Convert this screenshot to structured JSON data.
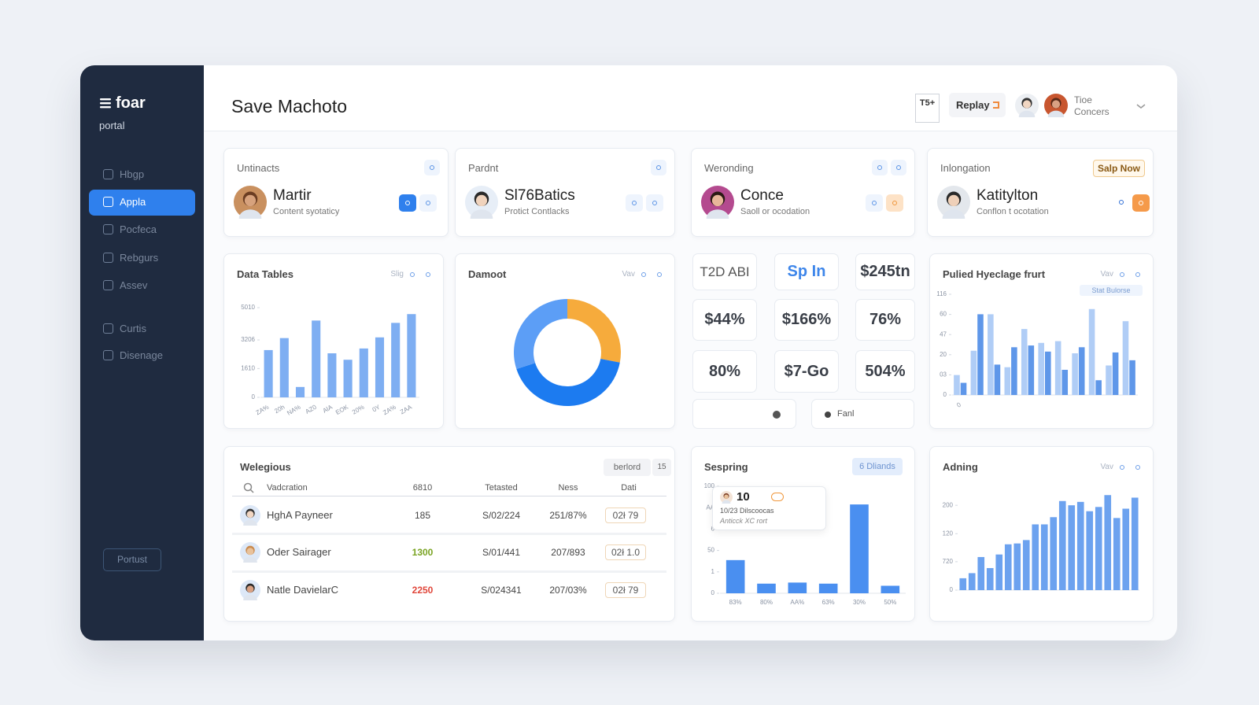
{
  "sidebar": {
    "brand": "foar",
    "subtitle": "portal",
    "nav": [
      "Hbgp",
      "Appla",
      "Pocfeca",
      "Rebgurs",
      "Assev",
      "Curtis",
      "Disenage"
    ],
    "active": 1,
    "footer_button": "Portust"
  },
  "header": {
    "title": "Save Machoto",
    "badge": "T5+",
    "button": "Replay",
    "user_line1": "Tioe",
    "user_line2": "Concers"
  },
  "contacts": [
    {
      "label": "Untinacts",
      "name": "Martir",
      "subtitle": "Content syotaticy"
    },
    {
      "label": "Pardnt",
      "name": "Sl76Batics",
      "subtitle": "Protict Contlacks"
    },
    {
      "label": "Weronding",
      "name": "Conce",
      "subtitle": "Saoll or ocodation"
    },
    {
      "label": "Inlongation",
      "name": "Katitylton",
      "subtitle": "Conflon t ocotation",
      "button": "Salp Now"
    }
  ],
  "data_tables": {
    "type": "bar",
    "title": "Data Tables",
    "link": "Slig",
    "categories": [
      "ZA%",
      "20h",
      "NA%",
      "AZ0",
      "AlA",
      "EOK",
      "20%",
      "0Y",
      "ZA%",
      "ZAA"
    ],
    "values": [
      2640,
      3310,
      580,
      4290,
      2460,
      2100,
      2730,
      3350,
      4160,
      4650
    ],
    "color": "#7eaef2",
    "ylim": [
      0,
      5010
    ],
    "yticks": [
      0,
      1610,
      3206,
      5010
    ],
    "grid": false
  },
  "donut": {
    "type": "pie",
    "title": "Damoot",
    "link": "Vav",
    "values": [
      28,
      42,
      30
    ],
    "colors": [
      "#f6ab3c",
      "#1c7bf0",
      "#5c9ef6"
    ]
  },
  "stats": {
    "tiles": [
      "T2D ABI",
      "Sp In",
      "$245tn",
      "$44%",
      "$166%",
      "76%",
      "80%",
      "$7-Go",
      "504%"
    ],
    "footer": "Fanl"
  },
  "pulied": {
    "type": "bar",
    "title": "Pulied Hyeclage frurt",
    "link": "Vav",
    "legend": "Stat Bulorse",
    "categories": [
      "0",
      null,
      null,
      null,
      null,
      null,
      null,
      null,
      null,
      null,
      null
    ],
    "series": [
      {
        "color": "#b0cdf6",
        "values": [
          23,
          51,
          93,
          32,
          76,
          60,
          62,
          48,
          99,
          34,
          85
        ]
      },
      {
        "color": "#5f97e9",
        "values": [
          14,
          93,
          35,
          55,
          57,
          50,
          29,
          55,
          17,
          49,
          40
        ]
      }
    ],
    "ylim": [
      0,
      116
    ],
    "yticks": [
      0,
      {
        "value": 23.2,
        "label": "03"
      },
      {
        "value": 46.4,
        "label": "20"
      },
      {
        "value": 69.6,
        "label": "47"
      },
      {
        "value": 92.8,
        "label": "60"
      },
      116
    ],
    "grid": false
  },
  "table": {
    "title": "Welegious",
    "button": "berlord",
    "button_extra": "15",
    "columns": [
      "Vadcration",
      "6810",
      "Tetasted",
      "Ness",
      "Dati"
    ],
    "rows": [
      [
        "HghA Payneer",
        185,
        "S/02/224",
        "251/87%",
        "02ł 79"
      ],
      [
        "Oder Sairager",
        1300,
        "S/01/441",
        "207/893",
        "02ł 1.0"
      ],
      [
        "Natle DavielarC",
        2250,
        "S/024341",
        "207/03%",
        "02ł 79"
      ]
    ],
    "highlight_colors": [
      "#444444",
      "#79a322",
      "#e0463a"
    ]
  },
  "sespring": {
    "type": "bar",
    "title": "Sespring",
    "badge": "6 Dliands",
    "tooltip": {
      "value": 10,
      "line1": "10/23 Dilscoocas",
      "line2": "Anticck XC rort"
    },
    "categories": [
      "83%",
      "80%",
      "AA%",
      "63%",
      "30%",
      "50%"
    ],
    "values": [
      31,
      9,
      10,
      9,
      83,
      7
    ],
    "color": "#4a8ff0",
    "ylim": [
      0,
      100
    ],
    "yticks": [
      0,
      {
        "value": 20,
        "label": "1"
      },
      {
        "value": 40,
        "label": "50"
      },
      {
        "value": 60,
        "label": "6"
      },
      {
        "value": 80,
        "label": "AA"
      },
      100
    ],
    "grid": false
  },
  "adning": {
    "type": "bar",
    "title": "Adning",
    "link": "Vav",
    "categories": [
      null,
      null,
      null,
      null,
      null,
      null,
      null,
      null,
      null,
      null,
      null,
      null,
      null,
      null,
      null,
      null,
      null,
      null,
      null,
      null
    ],
    "values": [
      28,
      40,
      78,
      52,
      84,
      108,
      110,
      118,
      155,
      155,
      172,
      210,
      200,
      208,
      186,
      196,
      224,
      170,
      192,
      218
    ],
    "color": "#6ca2ef",
    "ylim": [
      0,
      230
    ],
    "yticks": [
      0,
      {
        "value": 67,
        "label": "720"
      },
      {
        "value": 133,
        "label": "120"
      },
      200
    ],
    "grid": false
  }
}
